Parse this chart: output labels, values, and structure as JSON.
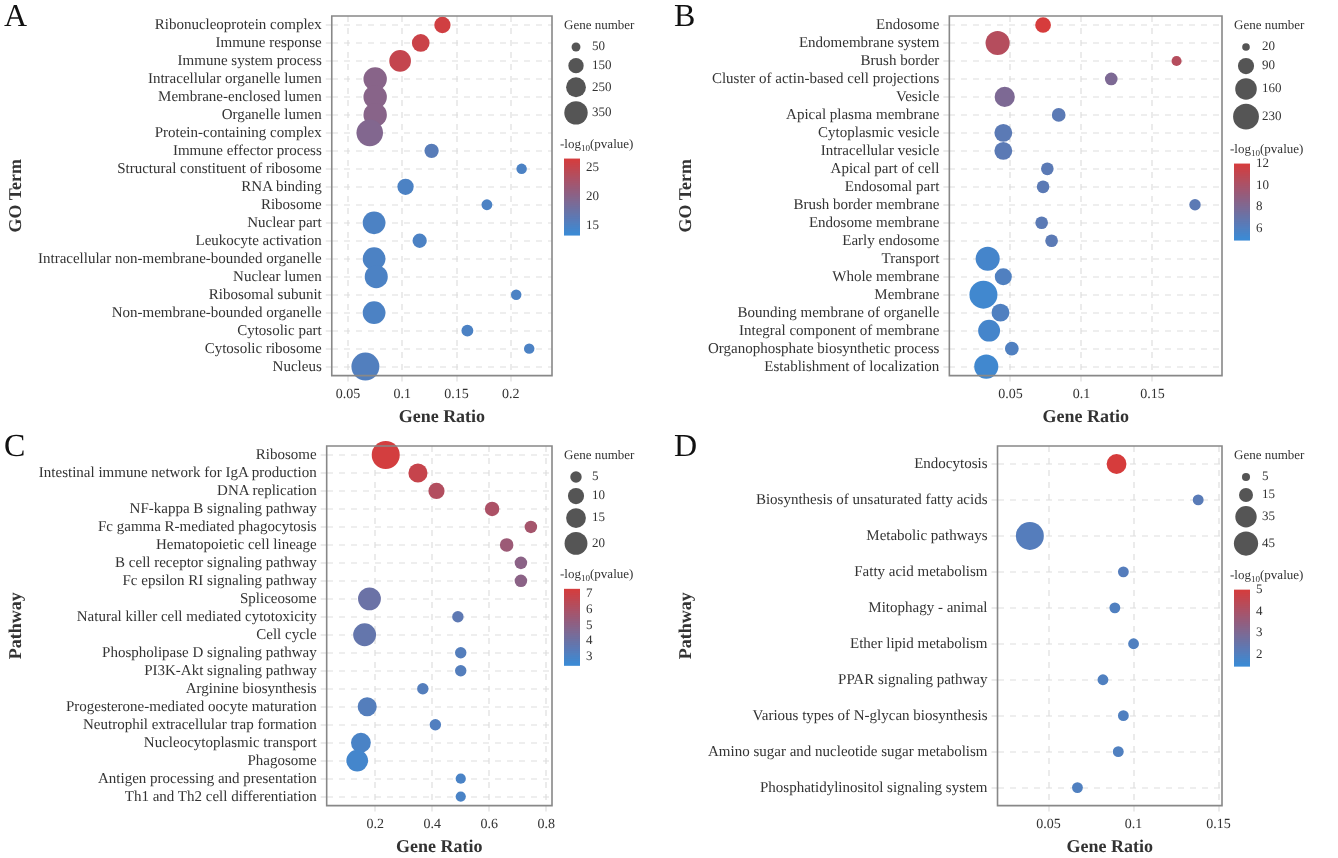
{
  "chart_data": [
    {
      "type": "bubble",
      "title": "A",
      "xlabel": "Gene Ratio",
      "ylabel": "GO Term",
      "orientation": "horizontal",
      "grid": true,
      "legend_title": "Gene number",
      "clabel": "-log$_{10}$(pvalue)",
      "categories": [
        "Ribonucleoprotein complex",
        "Immune response",
        "Immune system process",
        "Intracellular organelle lumen",
        "Membrane-enclosed lumen",
        "Organelle lumen",
        "Protein-containing complex",
        "Immune effector process",
        "Structural constituent of ribosome",
        "RNA binding",
        "Ribosome",
        "Nuclear part",
        "Leukocyte activation",
        "Intracellular non-membrane-bounded organelle",
        "Nuclear lumen",
        "Ribosomal subunit",
        "Non-membrane-bounded organelle",
        "Cytosolic part",
        "Cytosolic ribosome",
        "Nucleus"
      ],
      "values": [
        0.137,
        0.117,
        0.098,
        0.075,
        0.075,
        0.075,
        0.07,
        0.127,
        0.21,
        0.103,
        0.178,
        0.074,
        0.116,
        0.074,
        0.076,
        0.205,
        0.074,
        0.16,
        0.217,
        0.066
      ],
      "sizes": [
        170,
        200,
        300,
        350,
        350,
        350,
        450,
        130,
        70,
        170,
        75,
        330,
        130,
        330,
        340,
        70,
        330,
        90,
        70,
        500
      ],
      "size_legend": [
        50,
        150,
        250,
        350
      ],
      "cvalues": [
        26,
        25.5,
        25,
        20,
        20,
        20,
        19.5,
        16,
        15,
        15,
        15,
        15,
        15,
        15,
        15,
        15,
        15,
        15,
        15,
        15.5
      ],
      "clim": [
        13.5,
        26.5
      ],
      "cticks": [
        15,
        20,
        25
      ],
      "xlim": [
        0.035,
        0.238
      ],
      "xticks": [
        0.05,
        0.1,
        0.15,
        0.2
      ]
    },
    {
      "type": "bubble",
      "title": "B",
      "xlabel": "Gene Ratio",
      "ylabel": "GO Term",
      "orientation": "horizontal",
      "grid": true,
      "legend_title": "Gene number",
      "clabel": "-log$_{10}$(pvalue)",
      "categories": [
        "Endosome",
        "Endomembrane system",
        "Brush border",
        "Cluster of actin-based cell projections",
        "Vesicle",
        "Apical plasma membrane",
        "Cytoplasmic vesicle",
        "Intracellular vesicle",
        "Apical part of cell",
        "Endosomal part",
        "Brush border membrane",
        "Endosome membrane",
        "Early endosome",
        "Transport",
        "Whole membrane",
        "Membrane",
        "Bounding membrane of organelle",
        "Integral component of membrane",
        "Organophosphate biosynthetic process",
        "Establishment of localization"
      ],
      "values": [
        0.073,
        0.041,
        0.167,
        0.121,
        0.046,
        0.084,
        0.045,
        0.045,
        0.076,
        0.073,
        0.18,
        0.072,
        0.079,
        0.034,
        0.045,
        0.031,
        0.043,
        0.035,
        0.051,
        0.033
      ],
      "sizes": [
        85,
        200,
        35,
        55,
        140,
        65,
        110,
        110,
        55,
        55,
        45,
        55,
        55,
        200,
        100,
        270,
        110,
        165,
        65,
        200
      ],
      "size_legend": [
        20,
        90,
        160,
        230
      ],
      "cvalues": [
        12,
        10.5,
        10.5,
        8,
        8,
        6.5,
        6.5,
        6.5,
        6.5,
        6.5,
        6.5,
        6.5,
        6.5,
        5.5,
        6,
        5.3,
        6,
        5.5,
        6,
        5.3
      ],
      "clim": [
        5,
        12
      ],
      "cticks": [
        6,
        8,
        10,
        12
      ],
      "xlim": [
        0.007,
        0.199
      ],
      "xticks": [
        0.05,
        0.1,
        0.15
      ]
    },
    {
      "type": "bubble",
      "title": "C",
      "xlabel": "Gene Ratio",
      "ylabel": "Pathway",
      "orientation": "horizontal",
      "grid": true,
      "legend_title": "Gene number",
      "clabel": "-log$_{10}$(pvalue)",
      "categories": [
        "Ribosome",
        "Intestinal immune network for IgA production",
        "DNA replication",
        "NF-kappa B signaling pathway",
        "Fc gamma R-mediated phagocytosis",
        "Hematopoietic cell lineage",
        "B cell receptor signaling pathway",
        "Fc epsilon RI signaling pathway",
        "Spliceosome",
        "Natural killer cell mediated cytotoxicity",
        "Cell cycle",
        "Phospholipase D signaling pathway",
        "PI3K-Akt signaling pathway",
        "Arginine biosynthesis",
        "Progesterone-mediated oocyte maturation",
        "Neutrophil extracellular trap formation",
        "Nucleocytoplasmic transport",
        "Phagosome",
        "Antigen processing and presentation",
        "Th1 and Th2 cell differentiation"
      ],
      "values": [
        0.237,
        0.35,
        0.415,
        0.61,
        0.746,
        0.661,
        0.711,
        0.711,
        0.18,
        0.49,
        0.163,
        0.5,
        0.5,
        0.367,
        0.172,
        0.411,
        0.15,
        0.137,
        0.5,
        0.5
      ],
      "sizes": [
        30,
        14,
        10,
        8,
        6,
        7,
        6,
        6,
        20,
        5,
        20,
        5,
        5,
        5,
        14,
        5,
        15,
        18,
        4,
        4
      ],
      "size_legend": [
        5,
        10,
        15,
        20
      ],
      "cvalues": [
        7.2,
        6.8,
        6.2,
        6,
        5.8,
        5.5,
        5,
        5,
        4,
        3.6,
        3.8,
        3.3,
        3.3,
        3.3,
        3.3,
        3.2,
        3,
        2.8,
        3,
        3
      ],
      "clim": [
        2.5,
        7.3
      ],
      "cticks": [
        3,
        4,
        5,
        6,
        7
      ],
      "xlim": [
        0.03,
        0.82
      ],
      "xticks": [
        0.2,
        0.4,
        0.6,
        0.8
      ]
    },
    {
      "type": "bubble",
      "title": "D",
      "xlabel": "Gene Ratio",
      "ylabel": "Pathway",
      "orientation": "horizontal",
      "grid": true,
      "legend_title": "Gene number",
      "clabel": "-log$_{10}$(pvalue)",
      "categories": [
        "Endocytosis",
        "Biosynthesis of unsaturated fatty acids",
        "Metabolic pathways",
        "Fatty acid metabolism",
        "Mitophagy - animal",
        "Ether lipid metabolism",
        "PPAR signaling pathway",
        "Various types of N-glycan biosynthesis",
        "Amino sugar and nucleotide sugar metabolism",
        "Phosphatidylinositol signaling system"
      ],
      "values": [
        0.09,
        0.138,
        0.039,
        0.094,
        0.089,
        0.1,
        0.082,
        0.094,
        0.091,
        0.067
      ],
      "sizes": [
        30,
        9,
        60,
        9,
        9,
        9,
        9,
        9,
        9,
        9
      ],
      "size_legend": [
        5,
        15,
        35,
        45
      ],
      "cvalues": [
        5,
        2.2,
        2.1,
        2.1,
        2,
        2,
        2,
        2,
        2,
        2
      ],
      "clim": [
        1.5,
        5
      ],
      "cticks": [
        2,
        3,
        4,
        5
      ],
      "xlim": [
        0.02,
        0.152
      ],
      "xticks": [
        0.05,
        0.1,
        0.15
      ]
    }
  ]
}
